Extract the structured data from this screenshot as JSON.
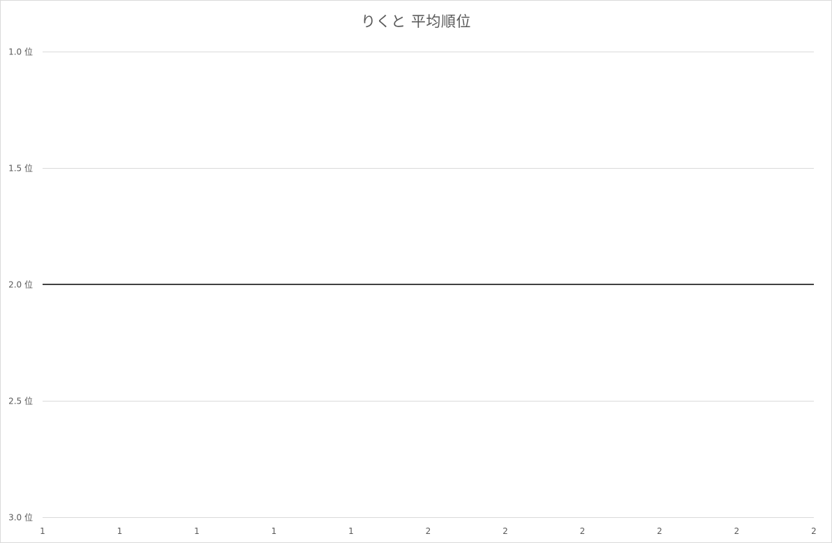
{
  "chart_data": {
    "type": "line",
    "title": "りくと 平均順位",
    "xlabel": "",
    "ylabel": "",
    "x_tick_labels": [
      "1",
      "1",
      "1",
      "1",
      "1",
      "2",
      "2",
      "2",
      "2",
      "2",
      "2"
    ],
    "y_tick_labels": [
      "1.0 位",
      "1.5 位",
      "2.0 位",
      "2.5 位",
      "3.0 位"
    ],
    "y_ticks": [
      1.0,
      1.5,
      2.0,
      2.5,
      3.0
    ],
    "ylim": [
      1.0,
      3.0
    ],
    "y_inverted": true,
    "grid": true,
    "legend": "none",
    "series": [
      {
        "color": "#404040",
        "x": [
          1,
          1,
          1,
          1,
          1,
          2,
          2,
          2,
          2,
          2,
          2
        ],
        "values": [
          2.0,
          2.0,
          2.0,
          2.0,
          2.0,
          2.0,
          2.0,
          2.0,
          2.0,
          2.0,
          2.0
        ]
      }
    ]
  },
  "colors": {
    "gridline": "#d9d9d9",
    "text": "#595959",
    "border": "#d9d9d9"
  }
}
